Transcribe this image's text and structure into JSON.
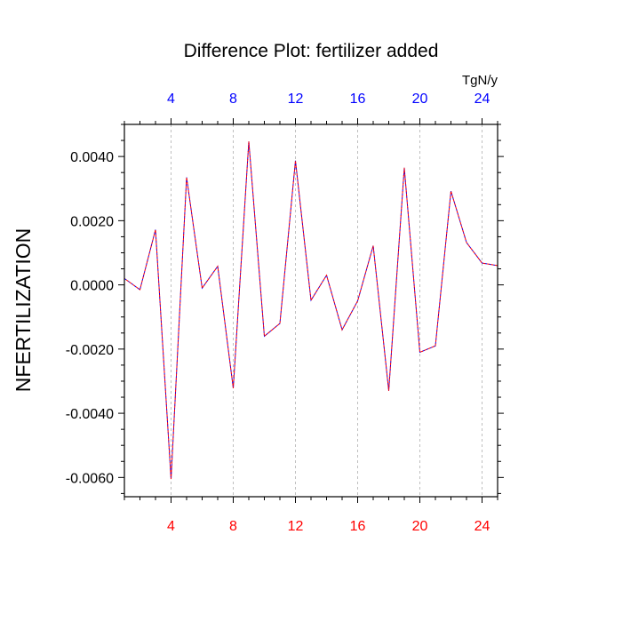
{
  "chart_data": {
    "type": "line",
    "title": "Difference Plot: fertilizer added",
    "ylabel": "NFERTILIZATION",
    "unit_label": "TgN/y",
    "xlim": [
      1,
      25
    ],
    "ylim": [
      -0.0066,
      0.005
    ],
    "x_ticks_major": [
      4,
      8,
      12,
      16,
      20,
      24
    ],
    "x_tick_labels": [
      "4",
      "8",
      "12",
      "16",
      "20",
      "24"
    ],
    "y_ticks_major": [
      -0.006,
      -0.004,
      -0.002,
      0.0,
      0.002,
      0.004
    ],
    "y_tick_labels": [
      "-0.0060",
      "-0.0040",
      "-0.0020",
      "0.0000",
      "0.0020",
      "0.0040"
    ],
    "grid": "vertical dashed at major x ticks",
    "bottom_tick_color": "#ff0000",
    "top_tick_color": "#0000ff",
    "series_colors": [
      "#0000ff",
      "#ff0000"
    ],
    "x": [
      1,
      2,
      3,
      4,
      5,
      6,
      7,
      8,
      9,
      10,
      11,
      12,
      13,
      14,
      15,
      16,
      17,
      18,
      19,
      20,
      21,
      22,
      23,
      24,
      25
    ],
    "series": [
      {
        "values": [
          0.0002,
          -0.00015,
          0.00172,
          -0.00605,
          0.00335,
          -0.0001,
          0.00058,
          -0.00322,
          0.00447,
          -0.0016,
          -0.0012,
          0.00387,
          -0.00048,
          0.0003,
          -0.0014,
          -0.0005,
          0.00122,
          -0.0033,
          0.00365,
          -0.0021,
          -0.0019,
          0.00292,
          0.00132,
          0.00068,
          0.0006
        ]
      }
    ]
  }
}
